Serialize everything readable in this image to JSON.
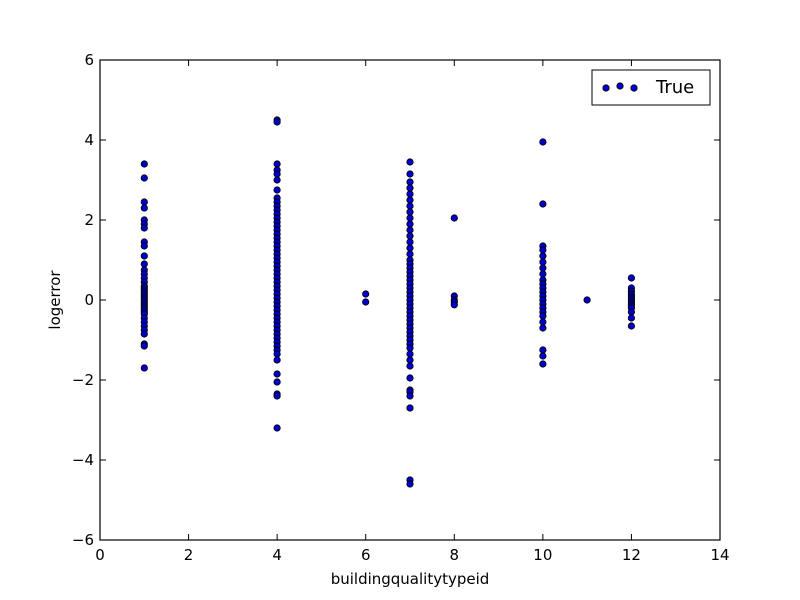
{
  "chart_data": {
    "type": "scatter",
    "title": "",
    "xlabel": "buildingqualitytypeid",
    "ylabel": "logerror",
    "xlim": [
      0,
      14
    ],
    "ylim": [
      -6,
      6
    ],
    "xticks": [
      0,
      2,
      4,
      6,
      8,
      10,
      12,
      14
    ],
    "yticks": [
      -6,
      -4,
      -2,
      0,
      2,
      4,
      6
    ],
    "xtick_labels": [
      "0",
      "2",
      "4",
      "6",
      "8",
      "10",
      "12",
      "14"
    ],
    "ytick_labels": [
      "−6",
      "−4",
      "−2",
      "0",
      "2",
      "4",
      "6"
    ],
    "grid": false,
    "legend_position": "top-right",
    "colors": {
      "marker_fill": "#0000cc",
      "marker_edge": "#000000"
    },
    "series": [
      {
        "name": "True",
        "points": [
          {
            "x": 1,
            "y": 3.4
          },
          {
            "x": 1,
            "y": 3.05
          },
          {
            "x": 1,
            "y": 2.45
          },
          {
            "x": 1,
            "y": 2.3
          },
          {
            "x": 1,
            "y": 2.0
          },
          {
            "x": 1,
            "y": 1.9
          },
          {
            "x": 1,
            "y": 1.8
          },
          {
            "x": 1,
            "y": 1.45
          },
          {
            "x": 1,
            "y": 1.35
          },
          {
            "x": 1,
            "y": 1.1
          },
          {
            "x": 1,
            "y": 0.9
          },
          {
            "x": 1,
            "y": 0.75
          },
          {
            "x": 1,
            "y": 0.65
          },
          {
            "x": 1,
            "y": 0.55
          },
          {
            "x": 1,
            "y": 0.45
          },
          {
            "x": 1,
            "y": 0.35
          },
          {
            "x": 1,
            "y": 0.3
          },
          {
            "x": 1,
            "y": 0.25
          },
          {
            "x": 1,
            "y": 0.2
          },
          {
            "x": 1,
            "y": 0.15
          },
          {
            "x": 1,
            "y": 0.1
          },
          {
            "x": 1,
            "y": 0.05
          },
          {
            "x": 1,
            "y": 0.0
          },
          {
            "x": 1,
            "y": -0.05
          },
          {
            "x": 1,
            "y": -0.1
          },
          {
            "x": 1,
            "y": -0.15
          },
          {
            "x": 1,
            "y": -0.2
          },
          {
            "x": 1,
            "y": -0.25
          },
          {
            "x": 1,
            "y": -0.3
          },
          {
            "x": 1,
            "y": -0.35
          },
          {
            "x": 1,
            "y": -0.45
          },
          {
            "x": 1,
            "y": -0.55
          },
          {
            "x": 1,
            "y": -0.65
          },
          {
            "x": 1,
            "y": -0.75
          },
          {
            "x": 1,
            "y": -0.85
          },
          {
            "x": 1,
            "y": -1.1
          },
          {
            "x": 1,
            "y": -1.15
          },
          {
            "x": 1,
            "y": -1.7
          },
          {
            "x": 4,
            "y": 4.5
          },
          {
            "x": 4,
            "y": 4.45
          },
          {
            "x": 4,
            "y": 3.4
          },
          {
            "x": 4,
            "y": 3.25
          },
          {
            "x": 4,
            "y": 3.15
          },
          {
            "x": 4,
            "y": 3.0
          },
          {
            "x": 4,
            "y": 2.75
          },
          {
            "x": 4,
            "y": 2.55
          },
          {
            "x": 4,
            "y": 2.45
          },
          {
            "x": 4,
            "y": 2.35
          },
          {
            "x": 4,
            "y": 2.25
          },
          {
            "x": 4,
            "y": 2.15
          },
          {
            "x": 4,
            "y": 2.05
          },
          {
            "x": 4,
            "y": 1.95
          },
          {
            "x": 4,
            "y": 1.85
          },
          {
            "x": 4,
            "y": 1.75
          },
          {
            "x": 4,
            "y": 1.65
          },
          {
            "x": 4,
            "y": 1.55
          },
          {
            "x": 4,
            "y": 1.45
          },
          {
            "x": 4,
            "y": 1.35
          },
          {
            "x": 4,
            "y": 1.25
          },
          {
            "x": 4,
            "y": 1.15
          },
          {
            "x": 4,
            "y": 1.05
          },
          {
            "x": 4,
            "y": 0.95
          },
          {
            "x": 4,
            "y": 0.85
          },
          {
            "x": 4,
            "y": 0.75
          },
          {
            "x": 4,
            "y": 0.65
          },
          {
            "x": 4,
            "y": 0.55
          },
          {
            "x": 4,
            "y": 0.45
          },
          {
            "x": 4,
            "y": 0.35
          },
          {
            "x": 4,
            "y": 0.25
          },
          {
            "x": 4,
            "y": 0.15
          },
          {
            "x": 4,
            "y": 0.05
          },
          {
            "x": 4,
            "y": -0.05
          },
          {
            "x": 4,
            "y": -0.15
          },
          {
            "x": 4,
            "y": -0.25
          },
          {
            "x": 4,
            "y": -0.35
          },
          {
            "x": 4,
            "y": -0.45
          },
          {
            "x": 4,
            "y": -0.55
          },
          {
            "x": 4,
            "y": -0.65
          },
          {
            "x": 4,
            "y": -0.75
          },
          {
            "x": 4,
            "y": -0.85
          },
          {
            "x": 4,
            "y": -0.95
          },
          {
            "x": 4,
            "y": -1.05
          },
          {
            "x": 4,
            "y": -1.15
          },
          {
            "x": 4,
            "y": -1.25
          },
          {
            "x": 4,
            "y": -1.35
          },
          {
            "x": 4,
            "y": -1.5
          },
          {
            "x": 4,
            "y": -1.85
          },
          {
            "x": 4,
            "y": -2.05
          },
          {
            "x": 4,
            "y": -2.35
          },
          {
            "x": 4,
            "y": -2.4
          },
          {
            "x": 4,
            "y": -3.2
          },
          {
            "x": 6,
            "y": 0.15
          },
          {
            "x": 6,
            "y": -0.05
          },
          {
            "x": 7,
            "y": 3.45
          },
          {
            "x": 7,
            "y": 3.15
          },
          {
            "x": 7,
            "y": 2.95
          },
          {
            "x": 7,
            "y": 2.8
          },
          {
            "x": 7,
            "y": 2.65
          },
          {
            "x": 7,
            "y": 2.5
          },
          {
            "x": 7,
            "y": 2.35
          },
          {
            "x": 7,
            "y": 2.2
          },
          {
            "x": 7,
            "y": 2.05
          },
          {
            "x": 7,
            "y": 1.9
          },
          {
            "x": 7,
            "y": 1.75
          },
          {
            "x": 7,
            "y": 1.6
          },
          {
            "x": 7,
            "y": 1.45
          },
          {
            "x": 7,
            "y": 1.3
          },
          {
            "x": 7,
            "y": 1.15
          },
          {
            "x": 7,
            "y": 1.0
          },
          {
            "x": 7,
            "y": 0.9
          },
          {
            "x": 7,
            "y": 0.8
          },
          {
            "x": 7,
            "y": 0.7
          },
          {
            "x": 7,
            "y": 0.6
          },
          {
            "x": 7,
            "y": 0.5
          },
          {
            "x": 7,
            "y": 0.4
          },
          {
            "x": 7,
            "y": 0.3
          },
          {
            "x": 7,
            "y": 0.2
          },
          {
            "x": 7,
            "y": 0.1
          },
          {
            "x": 7,
            "y": 0.0
          },
          {
            "x": 7,
            "y": -0.1
          },
          {
            "x": 7,
            "y": -0.2
          },
          {
            "x": 7,
            "y": -0.3
          },
          {
            "x": 7,
            "y": -0.4
          },
          {
            "x": 7,
            "y": -0.5
          },
          {
            "x": 7,
            "y": -0.6
          },
          {
            "x": 7,
            "y": -0.7
          },
          {
            "x": 7,
            "y": -0.8
          },
          {
            "x": 7,
            "y": -0.9
          },
          {
            "x": 7,
            "y": -1.0
          },
          {
            "x": 7,
            "y": -1.1
          },
          {
            "x": 7,
            "y": -1.2
          },
          {
            "x": 7,
            "y": -1.35
          },
          {
            "x": 7,
            "y": -1.5
          },
          {
            "x": 7,
            "y": -1.65
          },
          {
            "x": 7,
            "y": -1.95
          },
          {
            "x": 7,
            "y": -2.25
          },
          {
            "x": 7,
            "y": -2.3
          },
          {
            "x": 7,
            "y": -2.4
          },
          {
            "x": 7,
            "y": -2.7
          },
          {
            "x": 7,
            "y": -4.5
          },
          {
            "x": 7,
            "y": -4.6
          },
          {
            "x": 8,
            "y": 2.05
          },
          {
            "x": 8,
            "y": 0.1
          },
          {
            "x": 8,
            "y": 0.0
          },
          {
            "x": 8,
            "y": -0.05
          },
          {
            "x": 8,
            "y": -0.12
          },
          {
            "x": 10,
            "y": 3.95
          },
          {
            "x": 10,
            "y": 2.4
          },
          {
            "x": 10,
            "y": 1.35
          },
          {
            "x": 10,
            "y": 1.25
          },
          {
            "x": 10,
            "y": 1.1
          },
          {
            "x": 10,
            "y": 0.95
          },
          {
            "x": 10,
            "y": 0.8
          },
          {
            "x": 10,
            "y": 0.65
          },
          {
            "x": 10,
            "y": 0.5
          },
          {
            "x": 10,
            "y": 0.4
          },
          {
            "x": 10,
            "y": 0.3
          },
          {
            "x": 10,
            "y": 0.2
          },
          {
            "x": 10,
            "y": 0.1
          },
          {
            "x": 10,
            "y": 0.0
          },
          {
            "x": 10,
            "y": -0.1
          },
          {
            "x": 10,
            "y": -0.2
          },
          {
            "x": 10,
            "y": -0.3
          },
          {
            "x": 10,
            "y": -0.4
          },
          {
            "x": 10,
            "y": -0.55
          },
          {
            "x": 10,
            "y": -0.7
          },
          {
            "x": 10,
            "y": -1.25
          },
          {
            "x": 10,
            "y": -1.4
          },
          {
            "x": 10,
            "y": -1.6
          },
          {
            "x": 11,
            "y": 0.0
          },
          {
            "x": 12,
            "y": 0.55
          },
          {
            "x": 12,
            "y": 0.3
          },
          {
            "x": 12,
            "y": 0.22
          },
          {
            "x": 12,
            "y": 0.15
          },
          {
            "x": 12,
            "y": 0.1
          },
          {
            "x": 12,
            "y": 0.05
          },
          {
            "x": 12,
            "y": 0.0
          },
          {
            "x": 12,
            "y": -0.05
          },
          {
            "x": 12,
            "y": -0.1
          },
          {
            "x": 12,
            "y": -0.15
          },
          {
            "x": 12,
            "y": -0.2
          },
          {
            "x": 12,
            "y": -0.3
          },
          {
            "x": 12,
            "y": -0.45
          },
          {
            "x": 12,
            "y": -0.65
          }
        ]
      }
    ]
  }
}
